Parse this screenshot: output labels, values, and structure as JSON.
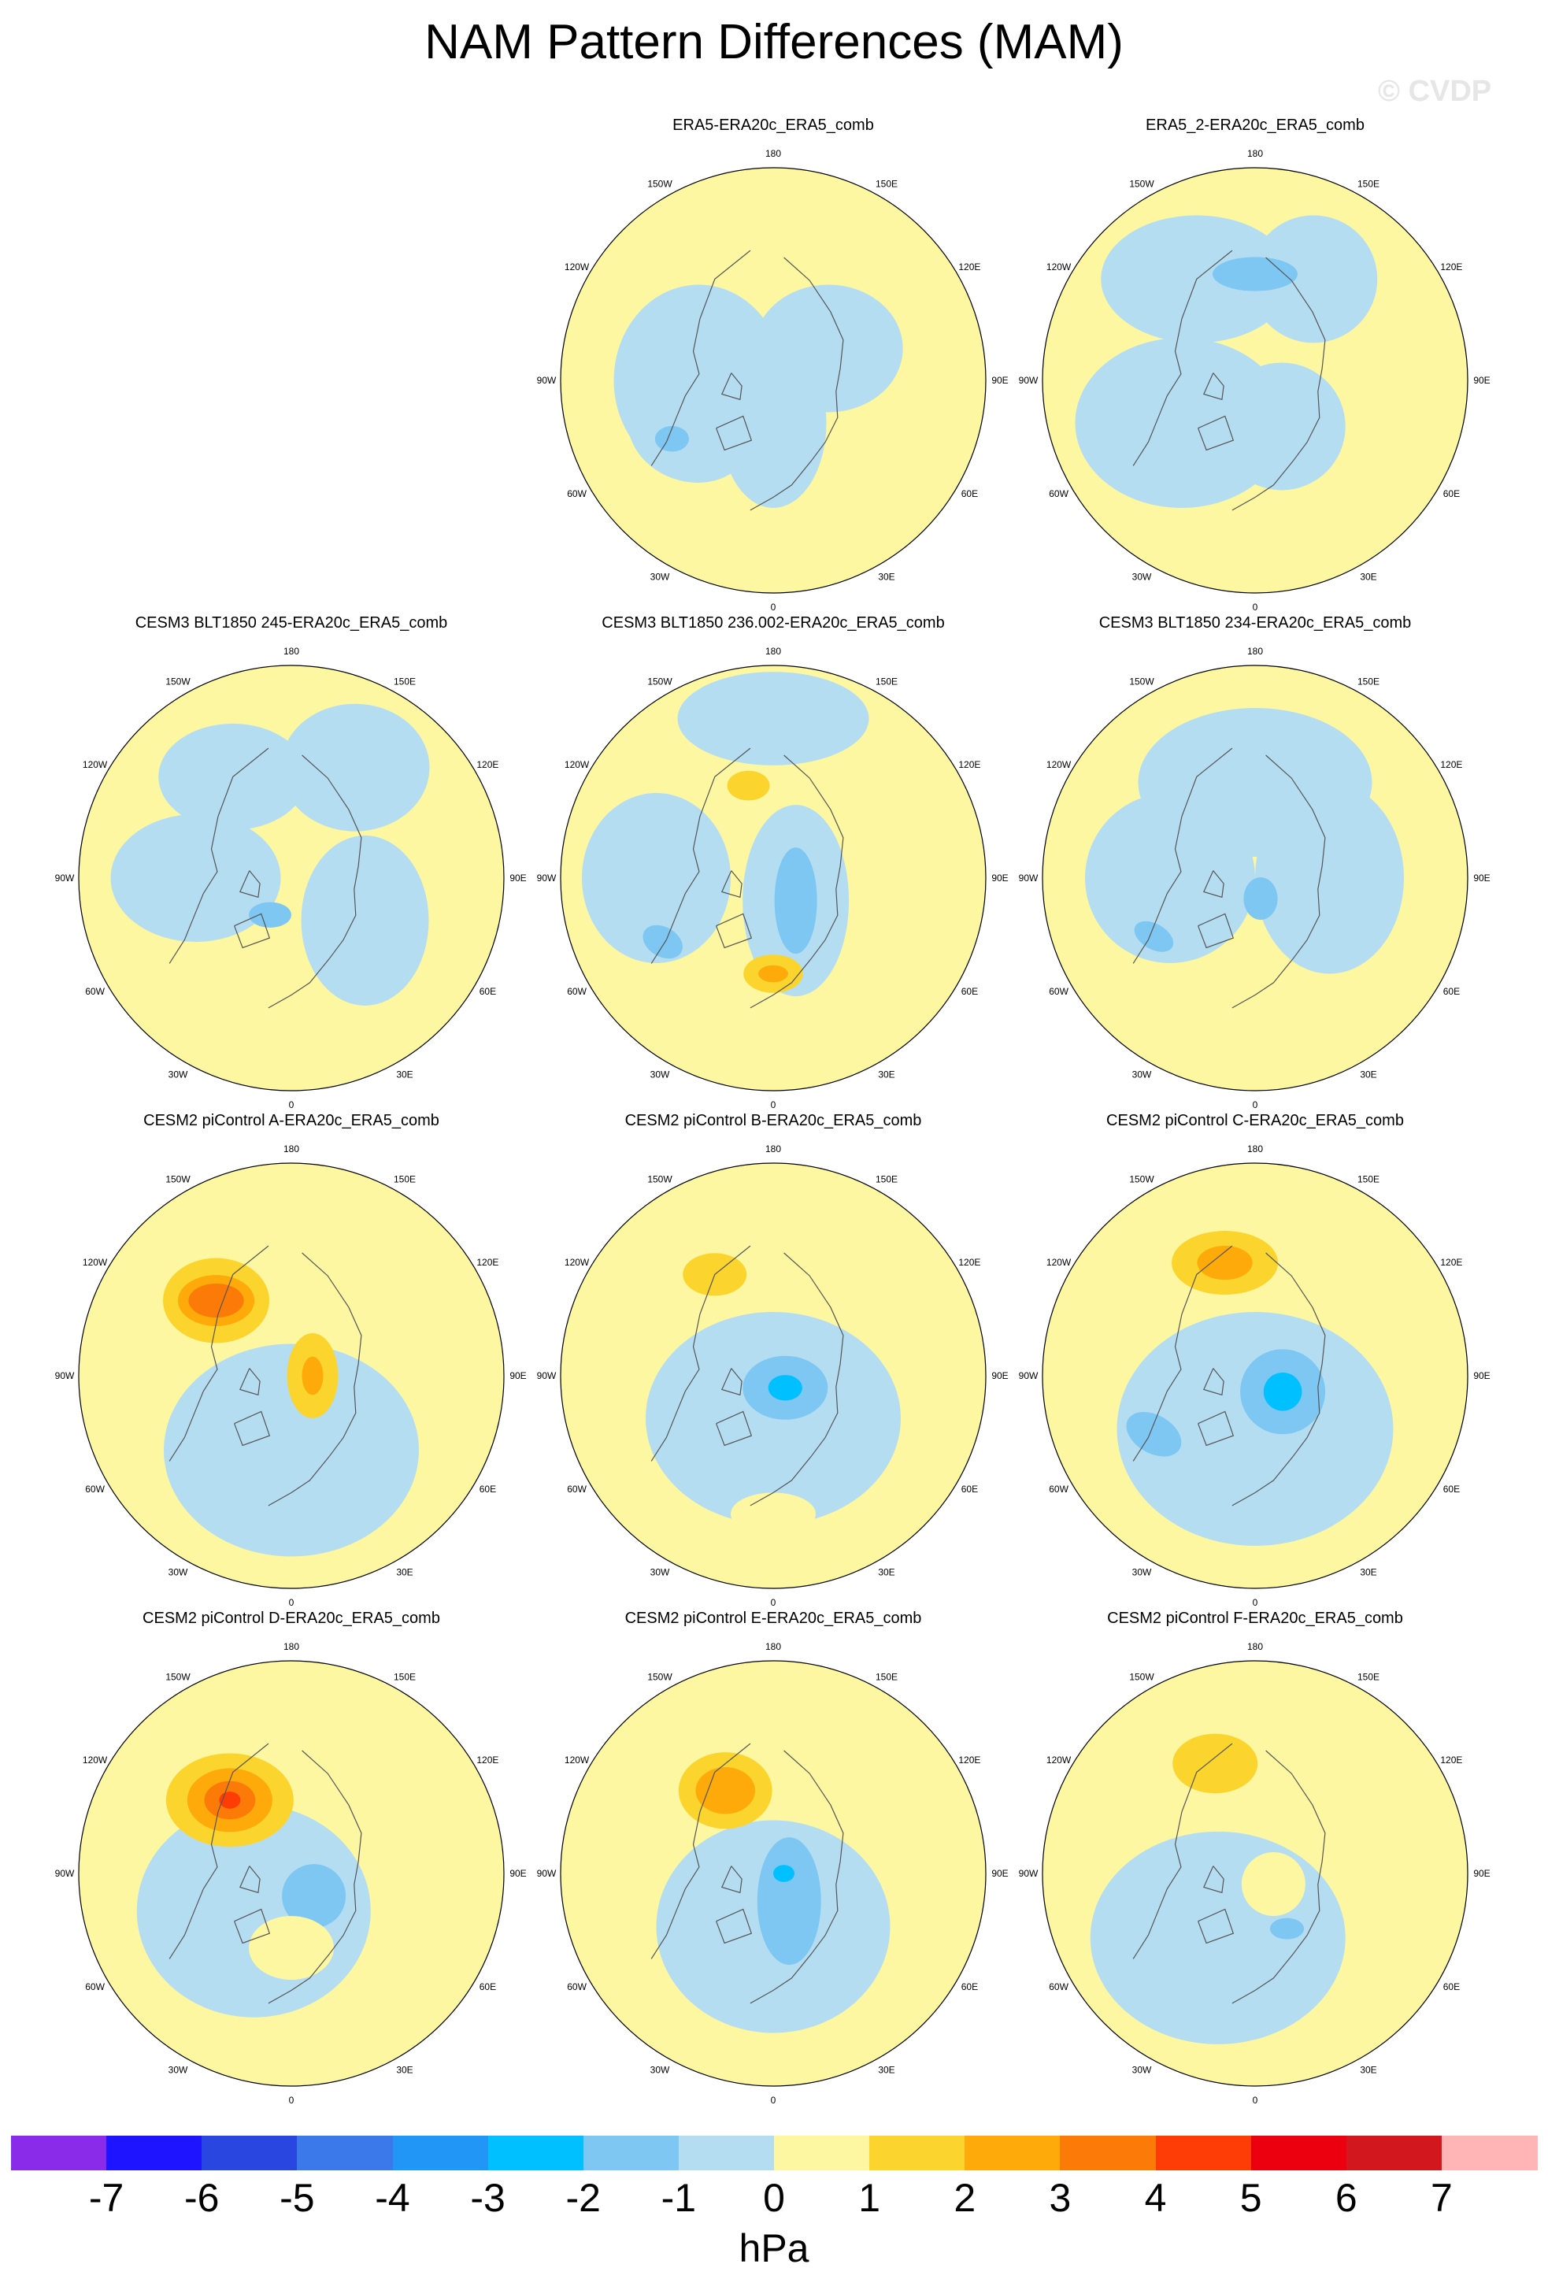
{
  "page_title": "NAM Pattern Differences (MAM)",
  "watermark": "© CVDP",
  "colors": {
    "levels": [
      "#8b2bea",
      "#1e14ff",
      "#2a46e0",
      "#3b79ea",
      "#2196f6",
      "#00c0ff",
      "#7ec7f3",
      "#b5ddf2",
      "#fdf7a2",
      "#fcd42e",
      "#fdaa0a",
      "#fc7b08",
      "#fd3c06",
      "#ec0010",
      "#d3171e",
      "#ffb5b6"
    ],
    "land_outline": "#555555",
    "disk_edge": "#000000"
  },
  "chart_data": {
    "type": "heatmap",
    "projection": "north-polar-stereographic",
    "units": "hPa",
    "colorbar_ticks": [
      "-7",
      "-6",
      "-5",
      "-4",
      "-3",
      "-2",
      "-1",
      "0",
      "1",
      "2",
      "3",
      "4",
      "5",
      "6",
      "7"
    ],
    "longitude_labels": [
      "180",
      "150E",
      "120E",
      "90E",
      "60E",
      "30E",
      "0",
      "30W",
      "60W",
      "90W",
      "120W",
      "150W"
    ],
    "panels": [
      {
        "name": "ERA5-ERA20c_ERA5_comb",
        "row": 0,
        "col": 1,
        "features": [
          {
            "lon": -90,
            "r": 0.35,
            "sx": 0.4,
            "sy": 0.45,
            "rot": 0,
            "level": -1
          },
          {
            "lon": -60,
            "r": 0.45,
            "sx": 0.3,
            "sy": 0.25,
            "rot": 20,
            "level": -1
          },
          {
            "lon": 120,
            "r": 0.3,
            "sx": 0.35,
            "sy": 0.3,
            "rot": 0,
            "level": -1
          },
          {
            "lon": 0,
            "r": 0.2,
            "sx": 0.25,
            "sy": 0.4,
            "rot": 0,
            "level": -1
          },
          {
            "lon": -60,
            "r": 0.55,
            "sx": 0.08,
            "sy": 0.06,
            "rot": 0,
            "level": -2
          }
        ]
      },
      {
        "name": "ERA5_2-ERA20c_ERA5_comb",
        "row": 0,
        "col": 2,
        "features": [
          {
            "lon": -60,
            "r": 0.4,
            "sx": 0.5,
            "sy": 0.4,
            "rot": 0,
            "level": -1
          },
          {
            "lon": -150,
            "r": 0.55,
            "sx": 0.45,
            "sy": 0.3,
            "rot": 0,
            "level": -1
          },
          {
            "lon": 150,
            "r": 0.55,
            "sx": 0.3,
            "sy": 0.3,
            "rot": 0,
            "level": -1
          },
          {
            "lon": 30,
            "r": 0.25,
            "sx": 0.3,
            "sy": 0.3,
            "rot": 0,
            "level": -1
          },
          {
            "lon": 180,
            "r": 0.5,
            "sx": 0.2,
            "sy": 0.08,
            "rot": 0,
            "level": -2
          }
        ]
      },
      {
        "name": "CESM3 BLT1850 245-ERA20c_ERA5_comb",
        "row": 1,
        "col": 0,
        "features": [
          {
            "lon": -90,
            "r": 0.45,
            "sx": 0.4,
            "sy": 0.3,
            "rot": 0,
            "level": -1
          },
          {
            "lon": -150,
            "r": 0.55,
            "sx": 0.35,
            "sy": 0.25,
            "rot": 0,
            "level": -1
          },
          {
            "lon": 150,
            "r": 0.6,
            "sx": 0.35,
            "sy": 0.3,
            "rot": 0,
            "level": -1
          },
          {
            "lon": 60,
            "r": 0.4,
            "sx": 0.3,
            "sy": 0.4,
            "rot": 0,
            "level": -1
          },
          {
            "lon": -30,
            "r": 0.2,
            "sx": 0.1,
            "sy": 0.06,
            "rot": 0,
            "level": -2
          }
        ]
      },
      {
        "name": "CESM3 BLT1850 236.002-ERA20c_ERA5_comb",
        "row": 1,
        "col": 1,
        "features": [
          {
            "lon": 180,
            "r": 0.75,
            "sx": 0.45,
            "sy": 0.22,
            "rot": 0,
            "level": -1
          },
          {
            "lon": 45,
            "r": 0.15,
            "sx": 0.25,
            "sy": 0.45,
            "rot": 0,
            "level": -1
          },
          {
            "lon": -90,
            "r": 0.55,
            "sx": 0.35,
            "sy": 0.4,
            "rot": 0,
            "level": -1
          },
          {
            "lon": 45,
            "r": 0.15,
            "sx": 0.1,
            "sy": 0.25,
            "rot": 0,
            "level": -2
          },
          {
            "lon": -60,
            "r": 0.6,
            "sx": 0.1,
            "sy": 0.07,
            "rot": 30,
            "level": -2
          },
          {
            "lon": -165,
            "r": 0.45,
            "sx": 0.1,
            "sy": 0.07,
            "rot": 0,
            "level": 1
          },
          {
            "lon": 0,
            "r": 0.45,
            "sx": 0.14,
            "sy": 0.09,
            "rot": 0,
            "level": 1
          },
          {
            "lon": 0,
            "r": 0.45,
            "sx": 0.07,
            "sy": 0.04,
            "rot": 0,
            "level": 2
          }
        ]
      },
      {
        "name": "CESM3 BLT1850 234-ERA20c_ERA5_comb",
        "row": 1,
        "col": 2,
        "features": [
          {
            "lon": 180,
            "r": 0.45,
            "sx": 0.55,
            "sy": 0.35,
            "rot": 0,
            "level": -1
          },
          {
            "lon": -90,
            "r": 0.4,
            "sx": 0.4,
            "sy": 0.4,
            "rot": 0,
            "level": -1
          },
          {
            "lon": 90,
            "r": 0.35,
            "sx": 0.35,
            "sy": 0.45,
            "rot": 0,
            "level": -1
          },
          {
            "lon": 15,
            "r": 0.1,
            "sx": 0.08,
            "sy": 0.1,
            "rot": 0,
            "level": -2
          },
          {
            "lon": -60,
            "r": 0.55,
            "sx": 0.1,
            "sy": 0.06,
            "rot": 30,
            "level": -2
          }
        ]
      },
      {
        "name": "CESM2 piControl A-ERA20c_ERA5_comb",
        "row": 2,
        "col": 0,
        "features": [
          {
            "lon": 0,
            "r": 0.35,
            "sx": 0.6,
            "sy": 0.5,
            "rot": 0,
            "level": -1
          },
          {
            "lon": -135,
            "r": 0.5,
            "sx": 0.25,
            "sy": 0.2,
            "rot": 0,
            "level": 1
          },
          {
            "lon": -135,
            "r": 0.5,
            "sx": 0.18,
            "sy": 0.12,
            "rot": 0,
            "level": 2
          },
          {
            "lon": -135,
            "r": 0.5,
            "sx": 0.13,
            "sy": 0.08,
            "rot": 0,
            "level": 3
          },
          {
            "lon": 90,
            "r": 0.1,
            "sx": 0.12,
            "sy": 0.2,
            "rot": 0,
            "level": 1
          },
          {
            "lon": 90,
            "r": 0.1,
            "sx": 0.05,
            "sy": 0.09,
            "rot": 0,
            "level": 2
          }
        ]
      },
      {
        "name": "CESM2 piControl B-ERA20c_ERA5_comb",
        "row": 2,
        "col": 1,
        "features": [
          {
            "lon": 0,
            "r": 0.2,
            "sx": 0.6,
            "sy": 0.5,
            "rot": 0,
            "level": -1
          },
          {
            "lon": 45,
            "r": 0.08,
            "sx": 0.2,
            "sy": 0.15,
            "rot": 0,
            "level": -2
          },
          {
            "lon": 45,
            "r": 0.08,
            "sx": 0.08,
            "sy": 0.06,
            "rot": 0,
            "level": -3
          },
          {
            "lon": -150,
            "r": 0.55,
            "sx": 0.15,
            "sy": 0.1,
            "rot": 0,
            "level": 1
          },
          {
            "lon": 0,
            "r": 0.65,
            "sx": 0.2,
            "sy": 0.1,
            "rot": 0,
            "level": 0
          }
        ]
      },
      {
        "name": "CESM2 piControl C-ERA20c_ERA5_comb",
        "row": 2,
        "col": 2,
        "features": [
          {
            "lon": 0,
            "r": 0.25,
            "sx": 0.65,
            "sy": 0.55,
            "rot": 0,
            "level": -1
          },
          {
            "lon": 60,
            "r": 0.15,
            "sx": 0.2,
            "sy": 0.2,
            "rot": 0,
            "level": -2
          },
          {
            "lon": 60,
            "r": 0.15,
            "sx": 0.09,
            "sy": 0.09,
            "rot": 0,
            "level": -3
          },
          {
            "lon": -60,
            "r": 0.55,
            "sx": 0.14,
            "sy": 0.09,
            "rot": 30,
            "level": -2
          },
          {
            "lon": -165,
            "r": 0.55,
            "sx": 0.25,
            "sy": 0.15,
            "rot": 0,
            "level": 1
          },
          {
            "lon": -165,
            "r": 0.55,
            "sx": 0.13,
            "sy": 0.08,
            "rot": 0,
            "level": 2
          }
        ]
      },
      {
        "name": "CESM2 piControl D-ERA20c_ERA5_comb",
        "row": 3,
        "col": 0,
        "features": [
          {
            "lon": -45,
            "r": 0.25,
            "sx": 0.55,
            "sy": 0.5,
            "rot": 0,
            "level": -1
          },
          {
            "lon": 45,
            "r": 0.15,
            "sx": 0.15,
            "sy": 0.15,
            "rot": 0,
            "level": -2
          },
          {
            "lon": -140,
            "r": 0.45,
            "sx": 0.3,
            "sy": 0.22,
            "rot": 0,
            "level": 1
          },
          {
            "lon": -140,
            "r": 0.45,
            "sx": 0.2,
            "sy": 0.15,
            "rot": 0,
            "level": 2
          },
          {
            "lon": -140,
            "r": 0.45,
            "sx": 0.12,
            "sy": 0.09,
            "rot": 0,
            "level": 3
          },
          {
            "lon": -140,
            "r": 0.45,
            "sx": 0.05,
            "sy": 0.04,
            "rot": 0,
            "level": 4
          },
          {
            "lon": 0,
            "r": 0.35,
            "sx": 0.2,
            "sy": 0.15,
            "rot": 0,
            "level": 0
          }
        ]
      },
      {
        "name": "CESM2 piControl E-ERA20c_ERA5_comb",
        "row": 3,
        "col": 1,
        "features": [
          {
            "lon": 0,
            "r": 0.25,
            "sx": 0.55,
            "sy": 0.5,
            "rot": 0,
            "level": -1
          },
          {
            "lon": 30,
            "r": 0.15,
            "sx": 0.15,
            "sy": 0.3,
            "rot": 0,
            "level": -2
          },
          {
            "lon": 90,
            "r": 0.05,
            "sx": 0.05,
            "sy": 0.04,
            "rot": 0,
            "level": -3
          },
          {
            "lon": -150,
            "r": 0.45,
            "sx": 0.22,
            "sy": 0.18,
            "rot": 0,
            "level": 1
          },
          {
            "lon": -150,
            "r": 0.45,
            "sx": 0.14,
            "sy": 0.11,
            "rot": 0,
            "level": 2
          }
        ]
      },
      {
        "name": "CESM2 piControl F-ERA20c_ERA5_comb",
        "row": 3,
        "col": 2,
        "features": [
          {
            "lon": -30,
            "r": 0.35,
            "sx": 0.6,
            "sy": 0.5,
            "rot": 0,
            "level": -1
          },
          {
            "lon": -160,
            "r": 0.55,
            "sx": 0.2,
            "sy": 0.14,
            "rot": 0,
            "level": 1
          },
          {
            "lon": 60,
            "r": 0.1,
            "sx": 0.15,
            "sy": 0.15,
            "rot": 0,
            "level": 0
          },
          {
            "lon": 30,
            "r": 0.3,
            "sx": 0.08,
            "sy": 0.05,
            "rot": 0,
            "level": -2
          }
        ]
      }
    ]
  }
}
